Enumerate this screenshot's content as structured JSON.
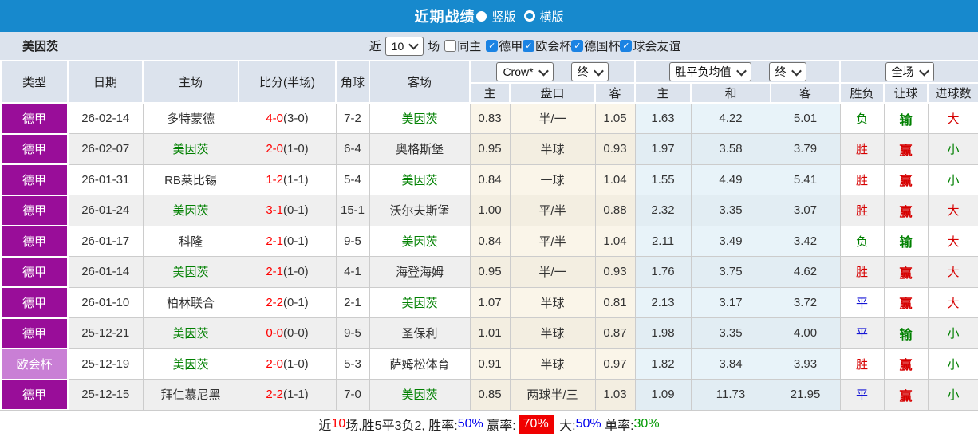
{
  "title_bar": {
    "title": "近期战绩",
    "vertical_label": "竖版",
    "horizontal_label": "横版"
  },
  "filter_bar": {
    "team": "美因茨",
    "recent_prefix": "近",
    "recent_count": "10",
    "recent_suffix": "场",
    "checkboxes": [
      {
        "label": "同主",
        "checked": false
      },
      {
        "label": "德甲",
        "checked": true
      },
      {
        "label": "欧会杯",
        "checked": true
      },
      {
        "label": "德国杯",
        "checked": true
      },
      {
        "label": "球会友谊",
        "checked": true
      }
    ]
  },
  "table": {
    "main_headers": [
      "类型",
      "日期",
      "主场",
      "比分(半场)",
      "角球",
      "客场"
    ],
    "groups": {
      "odds": {
        "select1": "Crow*",
        "select2": "终",
        "subs": [
          "主",
          "盘口",
          "客"
        ]
      },
      "avg": {
        "select1": "胜平负均值",
        "select2": "终",
        "subs": [
          "主",
          "和",
          "客"
        ]
      },
      "result": {
        "select1": "全场",
        "subs": [
          "胜负",
          "让球",
          "进球数"
        ]
      }
    },
    "rows": [
      {
        "league": "德甲",
        "league_style": "dark",
        "date": "26-02-14",
        "home": "多特蒙德",
        "home_highlight": false,
        "score_ft": "4-0",
        "score_ht": "(3-0)",
        "corners": "7-2",
        "away": "美因茨",
        "away_highlight": true,
        "odds_home": "0.83",
        "handicap": "半/一",
        "odds_away": "1.05",
        "avg_home": "1.63",
        "avg_draw": "4.22",
        "avg_away": "5.01",
        "outcome": {
          "text": "负",
          "color": "green"
        },
        "handicap_outcome": {
          "text": "输",
          "color": "green"
        },
        "goals_outcome": {
          "text": "大",
          "color": "red"
        }
      },
      {
        "league": "德甲",
        "league_style": "dark",
        "date": "26-02-07",
        "home": "美因茨",
        "home_highlight": true,
        "score_ft": "2-0",
        "score_ht": "(1-0)",
        "corners": "6-4",
        "away": "奥格斯堡",
        "away_highlight": false,
        "odds_home": "0.95",
        "handicap": "半球",
        "odds_away": "0.93",
        "avg_home": "1.97",
        "avg_draw": "3.58",
        "avg_away": "3.79",
        "outcome": {
          "text": "胜",
          "color": "red"
        },
        "handicap_outcome": {
          "text": "赢",
          "color": "red"
        },
        "goals_outcome": {
          "text": "小",
          "color": "green"
        }
      },
      {
        "league": "德甲",
        "league_style": "dark",
        "date": "26-01-31",
        "home": "RB莱比锡",
        "home_highlight": false,
        "score_ft": "1-2",
        "score_ht": "(1-1)",
        "corners": "5-4",
        "away": "美因茨",
        "away_highlight": true,
        "odds_home": "0.84",
        "handicap": "一球",
        "odds_away": "1.04",
        "avg_home": "1.55",
        "avg_draw": "4.49",
        "avg_away": "5.41",
        "outcome": {
          "text": "胜",
          "color": "red"
        },
        "handicap_outcome": {
          "text": "赢",
          "color": "red"
        },
        "goals_outcome": {
          "text": "小",
          "color": "green"
        }
      },
      {
        "league": "德甲",
        "league_style": "dark",
        "date": "26-01-24",
        "home": "美因茨",
        "home_highlight": true,
        "score_ft": "3-1",
        "score_ht": "(0-1)",
        "corners": "15-1",
        "away": "沃尔夫斯堡",
        "away_highlight": false,
        "odds_home": "1.00",
        "handicap": "平/半",
        "odds_away": "0.88",
        "avg_home": "2.32",
        "avg_draw": "3.35",
        "avg_away": "3.07",
        "outcome": {
          "text": "胜",
          "color": "red"
        },
        "handicap_outcome": {
          "text": "赢",
          "color": "red"
        },
        "goals_outcome": {
          "text": "大",
          "color": "red"
        }
      },
      {
        "league": "德甲",
        "league_style": "dark",
        "date": "26-01-17",
        "home": "科隆",
        "home_highlight": false,
        "score_ft": "2-1",
        "score_ht": "(0-1)",
        "corners": "9-5",
        "away": "美因茨",
        "away_highlight": true,
        "odds_home": "0.84",
        "handicap": "平/半",
        "odds_away": "1.04",
        "avg_home": "2.11",
        "avg_draw": "3.49",
        "avg_away": "3.42",
        "outcome": {
          "text": "负",
          "color": "green"
        },
        "handicap_outcome": {
          "text": "输",
          "color": "green"
        },
        "goals_outcome": {
          "text": "大",
          "color": "red"
        }
      },
      {
        "league": "德甲",
        "league_style": "dark",
        "date": "26-01-14",
        "home": "美因茨",
        "home_highlight": true,
        "score_ft": "2-1",
        "score_ht": "(1-0)",
        "corners": "4-1",
        "away": "海登海姆",
        "away_highlight": false,
        "odds_home": "0.95",
        "handicap": "半/一",
        "odds_away": "0.93",
        "avg_home": "1.76",
        "avg_draw": "3.75",
        "avg_away": "4.62",
        "outcome": {
          "text": "胜",
          "color": "red"
        },
        "handicap_outcome": {
          "text": "赢",
          "color": "red"
        },
        "goals_outcome": {
          "text": "大",
          "color": "red"
        }
      },
      {
        "league": "德甲",
        "league_style": "dark",
        "date": "26-01-10",
        "home": "柏林联合",
        "home_highlight": false,
        "score_ft": "2-2",
        "score_ht": "(0-1)",
        "corners": "2-1",
        "away": "美因茨",
        "away_highlight": true,
        "odds_home": "1.07",
        "handicap": "半球",
        "odds_away": "0.81",
        "avg_home": "2.13",
        "avg_draw": "3.17",
        "avg_away": "3.72",
        "outcome": {
          "text": "平",
          "color": "blue"
        },
        "handicap_outcome": {
          "text": "赢",
          "color": "red"
        },
        "goals_outcome": {
          "text": "大",
          "color": "red"
        }
      },
      {
        "league": "德甲",
        "league_style": "dark",
        "date": "25-12-21",
        "home": "美因茨",
        "home_highlight": true,
        "score_ft": "0-0",
        "score_ht": "(0-0)",
        "corners": "9-5",
        "away": "圣保利",
        "away_highlight": false,
        "odds_home": "1.01",
        "handicap": "半球",
        "odds_away": "0.87",
        "avg_home": "1.98",
        "avg_draw": "3.35",
        "avg_away": "4.00",
        "outcome": {
          "text": "平",
          "color": "blue"
        },
        "handicap_outcome": {
          "text": "输",
          "color": "green"
        },
        "goals_outcome": {
          "text": "小",
          "color": "green"
        }
      },
      {
        "league": "欧会杯",
        "league_style": "light",
        "date": "25-12-19",
        "home": "美因茨",
        "home_highlight": true,
        "score_ft": "2-0",
        "score_ht": "(1-0)",
        "corners": "5-3",
        "away": "萨姆松体育",
        "away_highlight": false,
        "odds_home": "0.91",
        "handicap": "半球",
        "odds_away": "0.97",
        "avg_home": "1.82",
        "avg_draw": "3.84",
        "avg_away": "3.93",
        "outcome": {
          "text": "胜",
          "color": "red"
        },
        "handicap_outcome": {
          "text": "赢",
          "color": "red"
        },
        "goals_outcome": {
          "text": "小",
          "color": "green"
        }
      },
      {
        "league": "德甲",
        "league_style": "dark",
        "date": "25-12-15",
        "home": "拜仁慕尼黑",
        "home_highlight": false,
        "score_ft": "2-2",
        "score_ht": "(1-1)",
        "corners": "7-0",
        "away": "美因茨",
        "away_highlight": true,
        "odds_home": "0.85",
        "handicap": "两球半/三",
        "odds_away": "1.03",
        "avg_home": "1.09",
        "avg_draw": "11.73",
        "avg_away": "21.95",
        "outcome": {
          "text": "平",
          "color": "blue"
        },
        "handicap_outcome": {
          "text": "赢",
          "color": "red"
        },
        "goals_outcome": {
          "text": "小",
          "color": "green"
        }
      }
    ]
  },
  "footer": {
    "segments": [
      {
        "text": "近",
        "style": "plain"
      },
      {
        "text": "10",
        "style": "red-text"
      },
      {
        "text": "场,胜5平3负2, 胜率:",
        "style": "plain"
      },
      {
        "text": "50%",
        "style": "blue-text"
      },
      {
        "text": " 赢率:",
        "style": "plain"
      },
      {
        "text": "70%",
        "style": "red-badge"
      },
      {
        "text": " 大:",
        "style": "plain"
      },
      {
        "text": "50%",
        "style": "blue-text"
      },
      {
        "text": " 单率:",
        "style": "plain"
      },
      {
        "text": "30%",
        "style": "green-text"
      }
    ]
  },
  "colors": {
    "title_bar_blue": "#1789cd",
    "header_gray": "#dce3ed",
    "league_dark_purple": "#990d99",
    "league_light_purple": "#c97fd5",
    "checkbox_blue": "#1b83e3",
    "win_red": "#d60000",
    "lose_green": "#008000",
    "draw_blue": "#1616d6",
    "score_red": "#ff0000",
    "odds_cream": "#faf5e9",
    "avg_blue": "#e8f3f9"
  }
}
